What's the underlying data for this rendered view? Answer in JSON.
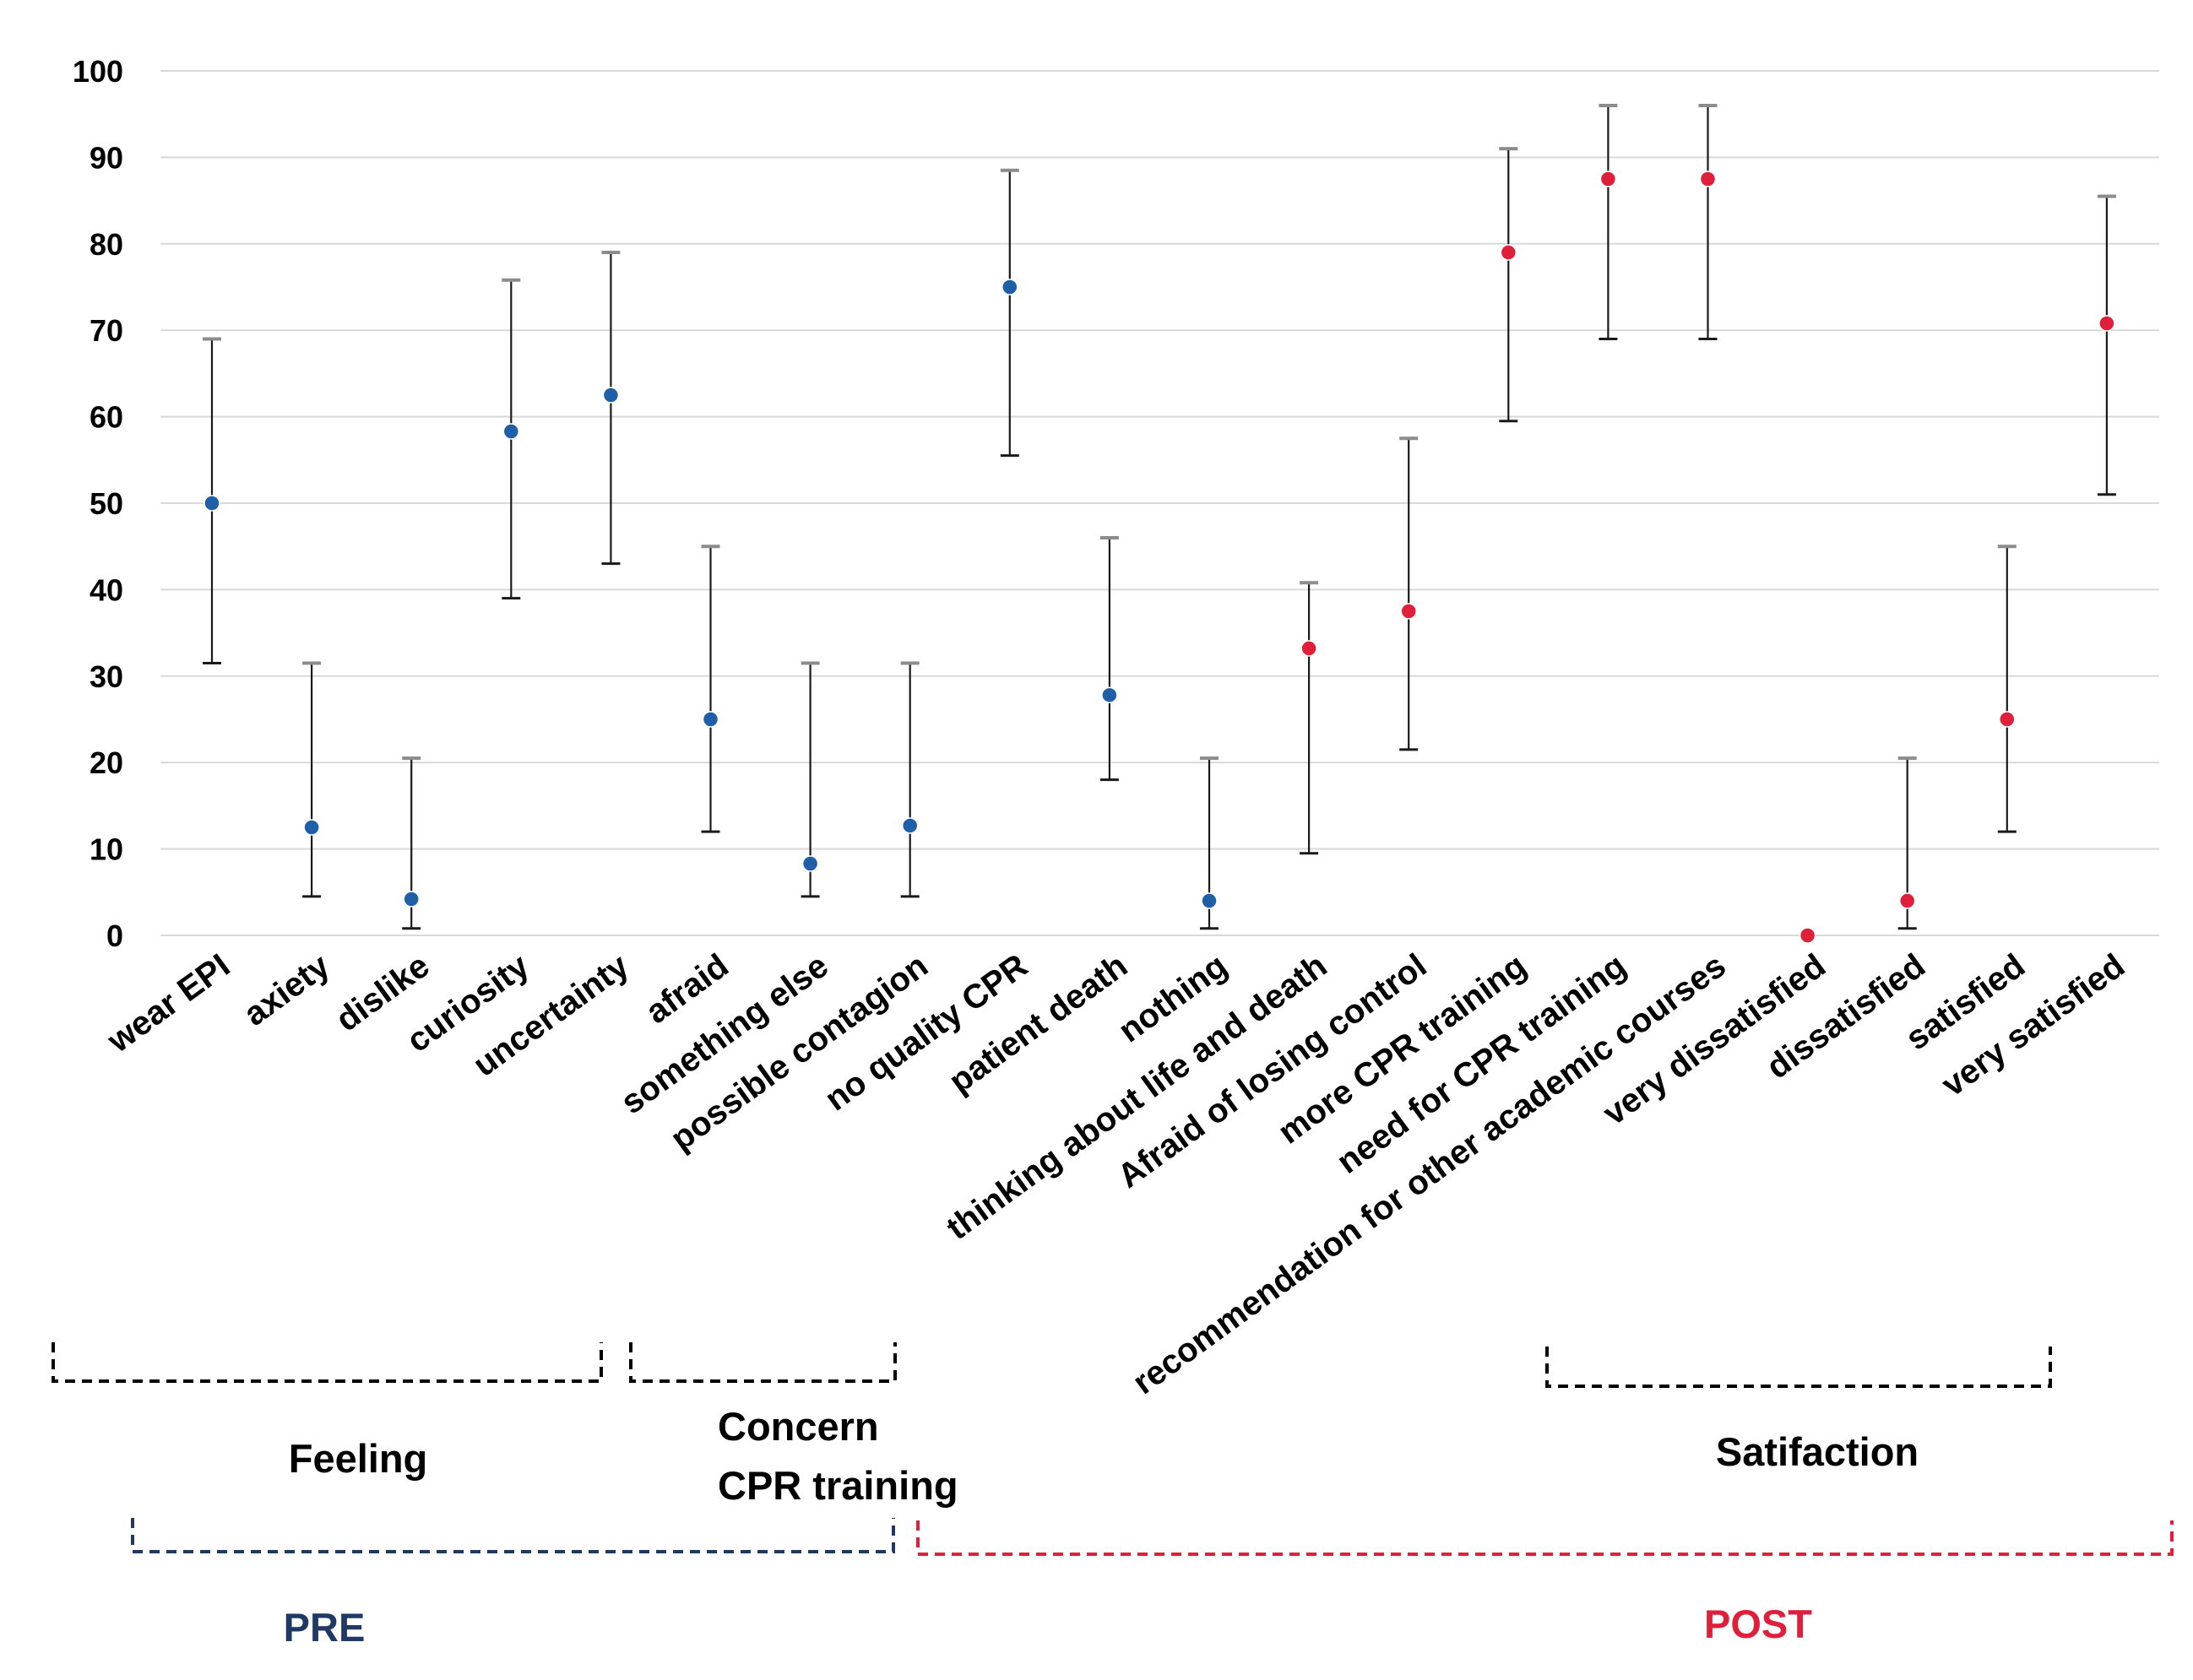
{
  "chart_data": {
    "type": "scatter",
    "error_bars": true,
    "ylim": [
      0,
      100
    ],
    "yticks": [
      0,
      10,
      20,
      30,
      40,
      50,
      60,
      70,
      80,
      90,
      100
    ],
    "grid": true,
    "categories": [
      "wear EPI",
      "axiety",
      "dislike",
      "curiosity",
      "uncertainty",
      "afraid",
      "something else",
      "possible contagion",
      "no quality CPR",
      "patient death",
      "nothing",
      "thinking about life and death",
      "Afraid of losing control",
      "more CPR training",
      "need for CPR training",
      "recommendation for other academic courses",
      "very dissatisfied",
      "dissatisfied",
      "satisfied",
      "very satisfied"
    ],
    "series": [
      {
        "name": "PRE",
        "color": "#1f5fa8",
        "points": [
          {
            "category": "wear EPI",
            "value": 50,
            "lower": 31.5,
            "upper": 69
          },
          {
            "category": "axiety",
            "value": 12.5,
            "lower": 4.5,
            "upper": 31.5
          },
          {
            "category": "dislike",
            "value": 4.2,
            "lower": 0.8,
            "upper": 20.5
          },
          {
            "category": "curiosity",
            "value": 58.3,
            "lower": 39,
            "upper": 75.8
          },
          {
            "category": "uncertainty",
            "value": 62.5,
            "lower": 43,
            "upper": 79
          },
          {
            "category": "afraid",
            "value": 25,
            "lower": 12,
            "upper": 45
          },
          {
            "category": "something else",
            "value": 8.3,
            "lower": 4.5,
            "upper": 31.5
          },
          {
            "category": "possible contagion",
            "value": 12.7,
            "lower": 4.5,
            "upper": 31.5
          },
          {
            "category": "no quality CPR",
            "value": 75,
            "lower": 55.5,
            "upper": 88.5
          },
          {
            "category": "patient death",
            "value": 27.8,
            "lower": 18,
            "upper": 46
          },
          {
            "category": "nothing",
            "value": 4,
            "lower": 0.8,
            "upper": 20.5
          }
        ]
      },
      {
        "name": "POST",
        "color": "#e0203a",
        "points": [
          {
            "category": "thinking about life and death",
            "value": 33.2,
            "lower": 9.5,
            "upper": 40.8
          },
          {
            "category": "Afraid of losing control",
            "value": 37.5,
            "lower": 21.5,
            "upper": 57.5
          },
          {
            "category": "more CPR training",
            "value": 79,
            "lower": 59.5,
            "upper": 91
          },
          {
            "category": "need for CPR training",
            "value": 87.5,
            "lower": 69,
            "upper": 96
          },
          {
            "category": "recommendation for other academic courses",
            "value": 87.5,
            "lower": 69,
            "upper": 96
          },
          {
            "category": "very dissatisfied",
            "value": 0,
            "lower": 0,
            "upper": 0
          },
          {
            "category": "dissatisfied",
            "value": 4,
            "lower": 0.8,
            "upper": 20.5
          },
          {
            "category": "satisfied",
            "value": 25,
            "lower": 12,
            "upper": 45
          },
          {
            "category": "very satisfied",
            "value": 70.8,
            "lower": 51,
            "upper": 85.5
          }
        ]
      }
    ],
    "groups": [
      {
        "name": "Feeling",
        "lines": [
          "Feeling"
        ],
        "from": "wear EPI",
        "to": "uncertainty"
      },
      {
        "name": "Concern CPR training",
        "lines": [
          "Concern",
          "CPR training"
        ],
        "from": "afraid",
        "to": "possible contagion"
      },
      {
        "name": "Satifaction",
        "lines": [
          "Satifaction"
        ],
        "from": "very dissatisfied",
        "to": "very satisfied"
      }
    ],
    "phases": [
      {
        "name": "PRE",
        "color": "#1f3864"
      },
      {
        "name": "POST",
        "color": "#e0203a"
      }
    ]
  }
}
